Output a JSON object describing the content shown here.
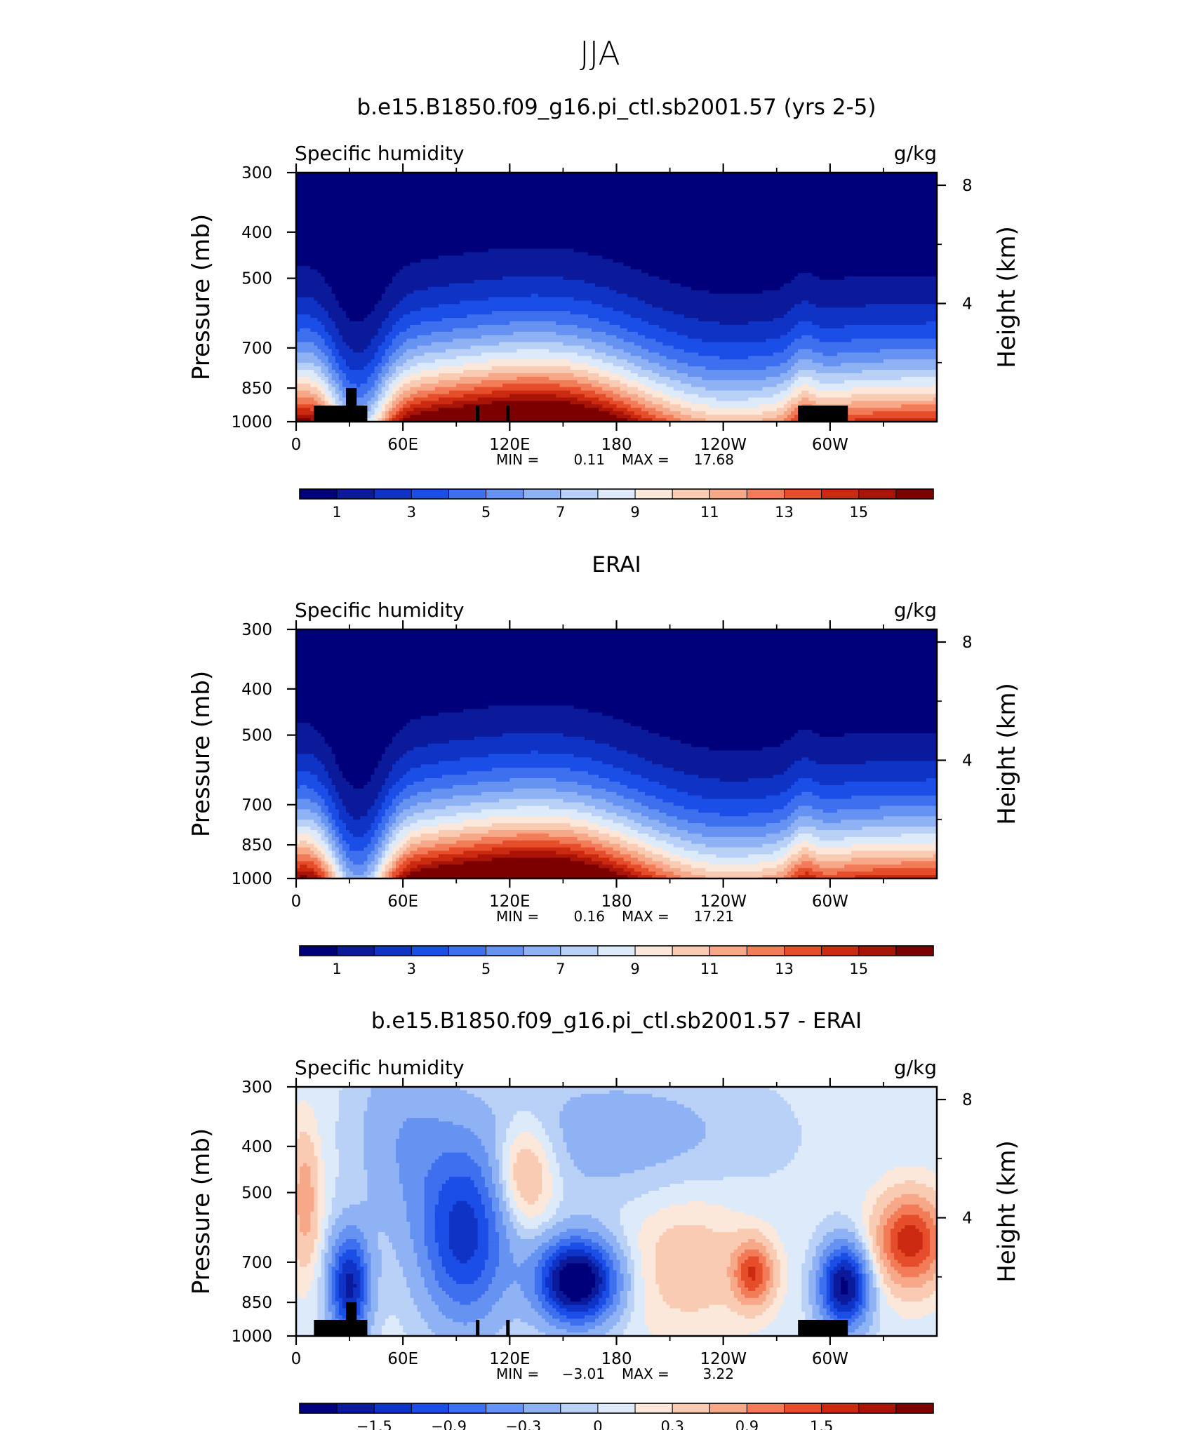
{
  "page": {
    "title": "JJA"
  },
  "colorbars": {
    "absolute": {
      "colors": [
        "#00007a",
        "#0a1a9a",
        "#0f33c4",
        "#1a4ee6",
        "#3d6fef",
        "#6692f2",
        "#8fb2f4",
        "#b9d0f7",
        "#ddeafa",
        "#fbe8da",
        "#f9cbb2",
        "#f7a888",
        "#f27b58",
        "#e64d2a",
        "#cc2a10",
        "#a81408",
        "#7d0000"
      ],
      "labels": [
        "1",
        "3",
        "5",
        "7",
        "9",
        "11",
        "13",
        "15"
      ],
      "label_boundary_index": [
        1,
        3,
        5,
        7,
        9,
        11,
        13,
        15
      ]
    },
    "difference": {
      "colors": [
        "#00007a",
        "#0a1a9a",
        "#0f33c4",
        "#1a4ee6",
        "#3d6fef",
        "#6692f2",
        "#8fb2f4",
        "#b9d0f7",
        "#ddeafa",
        "#fbe8da",
        "#f9cbb2",
        "#f7a888",
        "#f27b58",
        "#e64d2a",
        "#cc2a10",
        "#a81408",
        "#7d0000"
      ],
      "labels": [
        "−1.5",
        "−0.9",
        "−0.3",
        "0",
        "0.3",
        "0.9",
        "1.5"
      ],
      "label_boundary_index": [
        2,
        4,
        6,
        8,
        10,
        12,
        14
      ]
    }
  },
  "chart_data": [
    {
      "type": "heatmap",
      "title": "b.e15.B1850.f09_g16.pi_ctl.sb2001.57 (yrs 2-5)",
      "left_label": "Specific humidity",
      "right_label": "g/kg",
      "ylabel": "Pressure (mb)",
      "y2label": "Height (km)",
      "x_ticks": [
        "0",
        "60E",
        "120E",
        "180",
        "120W",
        "60W"
      ],
      "x_tick_values": [
        0,
        60,
        120,
        180,
        240,
        300
      ],
      "xlim": [
        0,
        360
      ],
      "y_ticks": [
        "300",
        "400",
        "500",
        "700",
        "850",
        "1000"
      ],
      "y_tick_values": [
        300,
        400,
        500,
        700,
        850,
        1000
      ],
      "ylim": [
        1000,
        300
      ],
      "y2_ticks": [
        "8",
        "4"
      ],
      "y2_tick_values_km": [
        8,
        4
      ],
      "min_label": "MIN =",
      "min_value": "0.11",
      "max_label": "MAX =",
      "max_value": "17.68",
      "min": 0.11,
      "max": 17.68,
      "colorbar": "absolute",
      "field": "model",
      "topography": true
    },
    {
      "type": "heatmap",
      "title": "ERAI",
      "left_label": "Specific humidity",
      "right_label": "g/kg",
      "ylabel": "Pressure (mb)",
      "y2label": "Height (km)",
      "x_ticks": [
        "0",
        "60E",
        "120E",
        "180",
        "120W",
        "60W"
      ],
      "x_tick_values": [
        0,
        60,
        120,
        180,
        240,
        300
      ],
      "xlim": [
        0,
        360
      ],
      "y_ticks": [
        "300",
        "400",
        "500",
        "700",
        "850",
        "1000"
      ],
      "y_tick_values": [
        300,
        400,
        500,
        700,
        850,
        1000
      ],
      "ylim": [
        1000,
        300
      ],
      "y2_ticks": [
        "8",
        "4"
      ],
      "y2_tick_values_km": [
        8,
        4
      ],
      "min_label": "MIN =",
      "min_value": "0.16",
      "max_label": "MAX =",
      "max_value": "17.21",
      "min": 0.16,
      "max": 17.21,
      "colorbar": "absolute",
      "field": "obs",
      "topography": false
    },
    {
      "type": "heatmap",
      "title": "b.e15.B1850.f09_g16.pi_ctl.sb2001.57 - ERAI",
      "left_label": "Specific humidity",
      "right_label": "g/kg",
      "ylabel": "Pressure (mb)",
      "y2label": "Height (km)",
      "x_ticks": [
        "0",
        "60E",
        "120E",
        "180",
        "120W",
        "60W"
      ],
      "x_tick_values": [
        0,
        60,
        120,
        180,
        240,
        300
      ],
      "xlim": [
        0,
        360
      ],
      "y_ticks": [
        "300",
        "400",
        "500",
        "700",
        "850",
        "1000"
      ],
      "y_tick_values": [
        300,
        400,
        500,
        700,
        850,
        1000
      ],
      "ylim": [
        1000,
        300
      ],
      "y2_ticks": [
        "8",
        "4"
      ],
      "y2_tick_values_km": [
        8,
        4
      ],
      "min_label": "MIN =",
      "min_value": "−3.01",
      "max_label": "MAX =",
      "max_value": "3.22",
      "min": -3.01,
      "max": 3.22,
      "colorbar": "difference",
      "field": "diff",
      "topography": true
    }
  ]
}
